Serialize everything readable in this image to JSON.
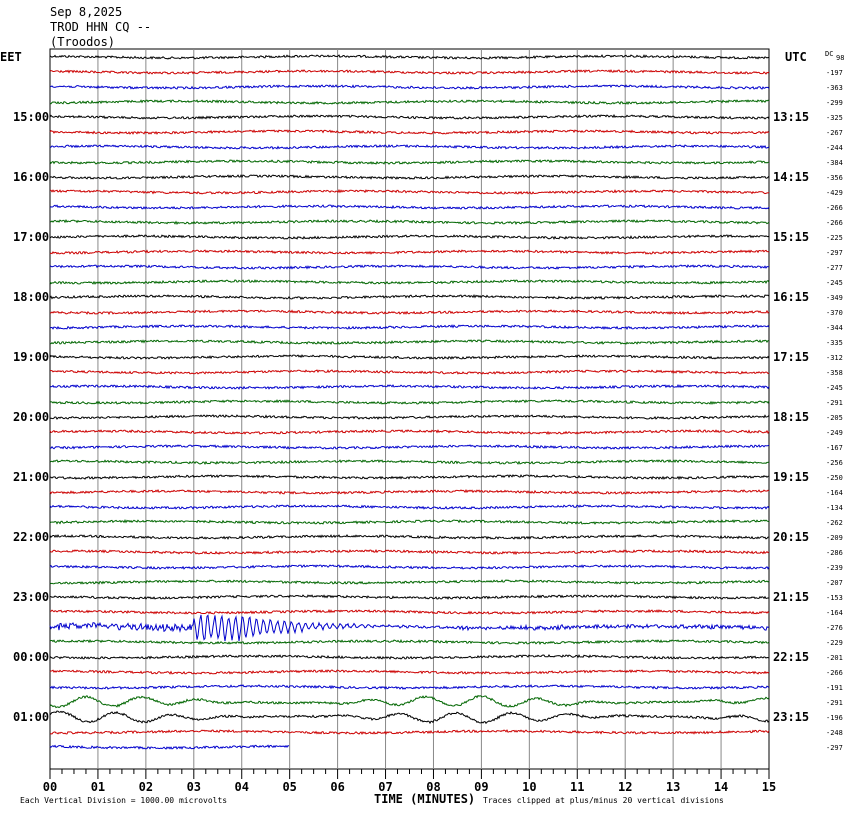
{
  "header": {
    "date": "Sep 8,2025",
    "station": "TROD HHN CQ --",
    "location": "(Troodos)"
  },
  "left_timezone": "EET",
  "right_timezone": "UTC",
  "dc_label": "DC",
  "x_axis_title": "TIME (MINUTES)",
  "footnote_left": "Each Vertical Division = 1000.00 microvolts",
  "footnote_right": "Traces clipped at plus/minus 20 vertical divisions",
  "colors": {
    "cycle": [
      "#000000",
      "#cc0000",
      "#0000cc",
      "#006600"
    ],
    "grid": "#888888"
  },
  "chart_data": {
    "type": "line",
    "title": "TROD HHN CQ -- (Troodos) Sep 8,2025",
    "xlabel": "TIME (MINUTES)",
    "xlim": [
      0,
      15
    ],
    "x_ticks": [
      "00",
      "01",
      "02",
      "03",
      "04",
      "05",
      "06",
      "07",
      "08",
      "09",
      "10",
      "11",
      "12",
      "13",
      "14",
      "15"
    ],
    "left_time_labels": [
      {
        "row": 4,
        "label": "15:00"
      },
      {
        "row": 8,
        "label": "16:00"
      },
      {
        "row": 12,
        "label": "17:00"
      },
      {
        "row": 16,
        "label": "18:00"
      },
      {
        "row": 20,
        "label": "19:00"
      },
      {
        "row": 24,
        "label": "20:00"
      },
      {
        "row": 28,
        "label": "21:00"
      },
      {
        "row": 32,
        "label": "22:00"
      },
      {
        "row": 36,
        "label": "23:00"
      },
      {
        "row": 40,
        "label": "00:00"
      },
      {
        "row": 44,
        "label": "01:00"
      }
    ],
    "right_time_labels": [
      {
        "row": 4,
        "label": "13:15"
      },
      {
        "row": 8,
        "label": "14:15"
      },
      {
        "row": 12,
        "label": "15:15"
      },
      {
        "row": 16,
        "label": "16:15"
      },
      {
        "row": 20,
        "label": "17:15"
      },
      {
        "row": 24,
        "label": "18:15"
      },
      {
        "row": 28,
        "label": "19:15"
      },
      {
        "row": 32,
        "label": "20:15"
      },
      {
        "row": 36,
        "label": "21:15"
      },
      {
        "row": 40,
        "label": "22:15"
      },
      {
        "row": 44,
        "label": "23:15"
      }
    ],
    "dc_offsets": [
      "98",
      "-197",
      "-363",
      "-299",
      "-325",
      "-267",
      "-244",
      "-384",
      "-356",
      "-429",
      "-266",
      "-266",
      "-225",
      "-297",
      "-277",
      "-245",
      "-349",
      "-370",
      "-344",
      "-335",
      "-312",
      "-358",
      "-245",
      "-291",
      "-205",
      "-249",
      "-167",
      "-256",
      "-250",
      "-164",
      "-134",
      "-262",
      "-209",
      "-286",
      "-239",
      "-207",
      "-153",
      "-164",
      "-276",
      "-229",
      "-201",
      "-266",
      "-191",
      "-291",
      "-196",
      "-248",
      "-297"
    ],
    "trace_count": 47,
    "last_trace_end_minute": 5,
    "events": [
      {
        "row": 38,
        "description": "earthquake signal",
        "start_minute": 3.0,
        "peak_minute": 3.5,
        "end_minute": 8.5
      },
      {
        "row": 43,
        "description": "long-period waves",
        "start_minute": 0.0,
        "end_minute": 15.0
      },
      {
        "row": 44,
        "description": "long-period waves",
        "start_minute": 0.0,
        "end_minute": 15.0
      }
    ]
  }
}
